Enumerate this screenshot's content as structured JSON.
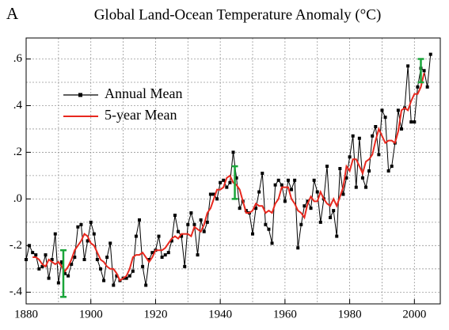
{
  "chart_data": {
    "type": "line",
    "panel_label": "A",
    "title": "Global Land-Ocean Temperature Anomaly (°C)",
    "xlim": [
      1880,
      2008
    ],
    "ylim": [
      -0.45,
      0.69
    ],
    "xticks": [
      1880,
      1900,
      1920,
      1940,
      1960,
      1980,
      2000
    ],
    "yticks": [
      {
        "value": 0.6,
        "label": ".6"
      },
      {
        "value": 0.4,
        "label": ".4"
      },
      {
        "value": 0.2,
        "label": ".2"
      },
      {
        "value": 0.0,
        "label": ".0"
      },
      {
        "value": -0.2,
        "label": "-.2"
      },
      {
        "value": -0.4,
        "label": "-.4"
      }
    ],
    "xgrid": [
      1890,
      1900,
      1910,
      1920,
      1930,
      1940,
      1950,
      1960,
      1970,
      1980,
      1990,
      2000
    ],
    "ygrid": [
      -0.4,
      -0.3,
      -0.2,
      -0.1,
      0.0,
      0.1,
      0.2,
      0.3,
      0.4,
      0.5,
      0.6
    ],
    "grid": true,
    "legend": "upper-left",
    "series": [
      {
        "name": "Annual Mean",
        "color": "#000000",
        "marker": "square",
        "x": [
          1880,
          1881,
          1882,
          1883,
          1884,
          1885,
          1886,
          1887,
          1888,
          1889,
          1890,
          1891,
          1892,
          1893,
          1894,
          1895,
          1896,
          1897,
          1898,
          1899,
          1900,
          1901,
          1902,
          1903,
          1904,
          1905,
          1906,
          1907,
          1908,
          1909,
          1910,
          1911,
          1912,
          1913,
          1914,
          1915,
          1916,
          1917,
          1918,
          1919,
          1920,
          1921,
          1922,
          1923,
          1924,
          1925,
          1926,
          1927,
          1928,
          1929,
          1930,
          1931,
          1932,
          1933,
          1934,
          1935,
          1936,
          1937,
          1938,
          1939,
          1940,
          1941,
          1942,
          1943,
          1944,
          1945,
          1946,
          1947,
          1948,
          1949,
          1950,
          1951,
          1952,
          1953,
          1954,
          1955,
          1956,
          1957,
          1958,
          1959,
          1960,
          1961,
          1962,
          1963,
          1964,
          1965,
          1966,
          1967,
          1968,
          1969,
          1970,
          1971,
          1972,
          1973,
          1974,
          1975,
          1976,
          1977,
          1978,
          1979,
          1980,
          1981,
          1982,
          1983,
          1984,
          1985,
          1986,
          1987,
          1988,
          1989,
          1990,
          1991,
          1992,
          1993,
          1994,
          1995,
          1996,
          1997,
          1998,
          1999,
          2000,
          2001,
          2002,
          2003,
          2004,
          2005
        ],
        "values": [
          -0.26,
          -0.2,
          -0.23,
          -0.24,
          -0.3,
          -0.29,
          -0.24,
          -0.34,
          -0.26,
          -0.15,
          -0.36,
          -0.27,
          -0.32,
          -0.33,
          -0.28,
          -0.25,
          -0.12,
          -0.11,
          -0.26,
          -0.18,
          -0.1,
          -0.15,
          -0.26,
          -0.3,
          -0.35,
          -0.25,
          -0.19,
          -0.37,
          -0.33,
          -0.35,
          -0.34,
          -0.34,
          -0.33,
          -0.31,
          -0.16,
          -0.09,
          -0.29,
          -0.37,
          -0.26,
          -0.23,
          -0.22,
          -0.16,
          -0.25,
          -0.24,
          -0.23,
          -0.18,
          -0.07,
          -0.14,
          -0.16,
          -0.29,
          -0.11,
          -0.06,
          -0.11,
          -0.24,
          -0.09,
          -0.14,
          -0.1,
          0.02,
          0.02,
          0.0,
          0.07,
          0.08,
          0.05,
          0.07,
          0.2,
          0.09,
          -0.04,
          -0.01,
          -0.05,
          -0.06,
          -0.15,
          -0.04,
          0.03,
          0.11,
          -0.11,
          -0.13,
          -0.19,
          0.06,
          0.08,
          0.06,
          -0.01,
          0.08,
          0.04,
          0.08,
          -0.21,
          -0.11,
          -0.03,
          -0.01,
          -0.04,
          0.08,
          0.03,
          -0.1,
          0.0,
          0.14,
          -0.08,
          -0.05,
          -0.16,
          0.13,
          0.02,
          0.09,
          0.18,
          0.27,
          0.05,
          0.26,
          0.09,
          0.05,
          0.12,
          0.27,
          0.31,
          0.19,
          0.38,
          0.35,
          0.12,
          0.14,
          0.24,
          0.38,
          0.3,
          0.39,
          0.57,
          0.33,
          0.33,
          0.48,
          0.56,
          0.55,
          0.48,
          0.62
        ]
      },
      {
        "name": "5-year Mean",
        "color": "#e8281e",
        "x": [
          1882,
          1883,
          1884,
          1885,
          1886,
          1887,
          1888,
          1889,
          1890,
          1891,
          1892,
          1893,
          1894,
          1895,
          1896,
          1897,
          1898,
          1899,
          1900,
          1901,
          1902,
          1903,
          1904,
          1905,
          1906,
          1907,
          1908,
          1909,
          1910,
          1911,
          1912,
          1913,
          1914,
          1915,
          1916,
          1917,
          1918,
          1919,
          1920,
          1921,
          1922,
          1923,
          1924,
          1925,
          1926,
          1927,
          1928,
          1929,
          1930,
          1931,
          1932,
          1933,
          1934,
          1935,
          1936,
          1937,
          1938,
          1939,
          1940,
          1941,
          1942,
          1943,
          1944,
          1945,
          1946,
          1947,
          1948,
          1949,
          1950,
          1951,
          1952,
          1953,
          1954,
          1955,
          1956,
          1957,
          1958,
          1959,
          1960,
          1961,
          1962,
          1963,
          1964,
          1965,
          1966,
          1967,
          1968,
          1969,
          1970,
          1971,
          1972,
          1973,
          1974,
          1975,
          1976,
          1977,
          1978,
          1979,
          1980,
          1981,
          1982,
          1983,
          1984,
          1985,
          1986,
          1987,
          1988,
          1989,
          1990,
          1991,
          1992,
          1993,
          1994,
          1995,
          1996,
          1997,
          1998,
          1999,
          2000,
          2001,
          2002,
          2003
        ],
        "values": [
          -0.25,
          -0.25,
          -0.26,
          -0.28,
          -0.29,
          -0.26,
          -0.27,
          -0.28,
          -0.27,
          -0.29,
          -0.31,
          -0.29,
          -0.26,
          -0.22,
          -0.2,
          -0.18,
          -0.15,
          -0.16,
          -0.19,
          -0.2,
          -0.23,
          -0.26,
          -0.27,
          -0.29,
          -0.3,
          -0.3,
          -0.32,
          -0.35,
          -0.34,
          -0.33,
          -0.3,
          -0.25,
          -0.24,
          -0.24,
          -0.23,
          -0.25,
          -0.27,
          -0.25,
          -0.22,
          -0.22,
          -0.22,
          -0.21,
          -0.19,
          -0.17,
          -0.16,
          -0.17,
          -0.15,
          -0.15,
          -0.15,
          -0.16,
          -0.12,
          -0.13,
          -0.14,
          -0.11,
          -0.06,
          -0.04,
          0.0,
          0.04,
          0.04,
          0.05,
          0.09,
          0.1,
          0.07,
          0.06,
          0.04,
          -0.01,
          -0.06,
          -0.06,
          -0.05,
          -0.02,
          -0.03,
          -0.03,
          -0.06,
          -0.05,
          -0.06,
          -0.02,
          0.0,
          0.05,
          0.05,
          0.05,
          0.0,
          -0.02,
          -0.05,
          -0.06,
          -0.08,
          -0.02,
          0.01,
          -0.01,
          -0.01,
          0.03,
          0.0,
          -0.02,
          -0.03,
          0.0,
          -0.03,
          0.01,
          0.05,
          0.14,
          0.12,
          0.17,
          0.17,
          0.14,
          0.11,
          0.16,
          0.17,
          0.19,
          0.25,
          0.3,
          0.27,
          0.24,
          0.25,
          0.25,
          0.24,
          0.29,
          0.38,
          0.39,
          0.38,
          0.42,
          0.45,
          0.45,
          0.48,
          0.54
        ]
      }
    ],
    "error_bars": {
      "color": "#1aa53a",
      "x": [
        1891.5,
        1944.5,
        2002
      ],
      "values": [
        -0.32,
        0.07,
        0.55
      ],
      "errors": [
        0.1,
        0.07,
        0.05
      ]
    }
  }
}
